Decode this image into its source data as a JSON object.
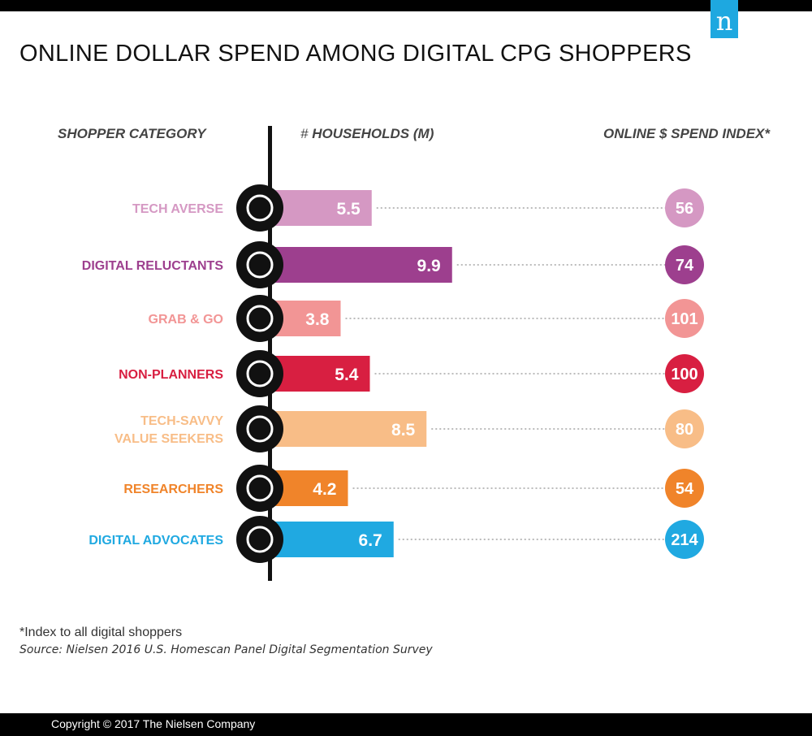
{
  "logo_text": "n",
  "chart_data": {
    "type": "bar",
    "title": "ONLINE DOLLAR SPEND AMONG DIGITAL CPG SHOPPERS",
    "headers": {
      "category": "SHOPPER CATEGORY",
      "households_prefix": "# ",
      "households": "HOUSEHOLDS (M)",
      "index": "ONLINE $ SPEND INDEX*"
    },
    "categories": [
      "TECH AVERSE",
      "DIGITAL RELUCTANTS",
      "GRAB & GO",
      "NON-PLANNERS",
      "TECH-SAVVY VALUE SEEKERS",
      "RESEARCHERS",
      "DIGITAL ADVOCATES"
    ],
    "label_lines": [
      [
        "TECH AVERSE"
      ],
      [
        "DIGITAL RELUCTANTS"
      ],
      [
        "GRAB & GO"
      ],
      [
        "NON-PLANNERS"
      ],
      [
        "TECH-SAVVY",
        "VALUE SEEKERS"
      ],
      [
        "RESEARCHERS"
      ],
      [
        "DIGITAL ADVOCATES"
      ]
    ],
    "icons": [
      "store-icon",
      "scale-icon",
      "clock-icon",
      "no-list-icon",
      "money-search-icon",
      "magnifier-icon",
      "laptop-cart-icon"
    ],
    "series": [
      {
        "name": "Households (M)",
        "values": [
          5.5,
          9.9,
          3.8,
          5.4,
          8.5,
          4.2,
          6.7
        ]
      },
      {
        "name": "Online $ Spend Index",
        "values": [
          56,
          74,
          101,
          100,
          80,
          54,
          214
        ]
      }
    ],
    "colors": [
      "#d598c3",
      "#9d3f8e",
      "#f29595",
      "#d81f41",
      "#f8bd87",
      "#f0842a",
      "#20a9e1"
    ],
    "xlim": [
      0,
      10
    ]
  },
  "footnote": "*Index to all digital shoppers",
  "source": "Source: Nielsen 2016 U.S. Homescan Panel Digital Segmentation Survey",
  "copyright": "Copyright © 2017 The Nielsen Company"
}
